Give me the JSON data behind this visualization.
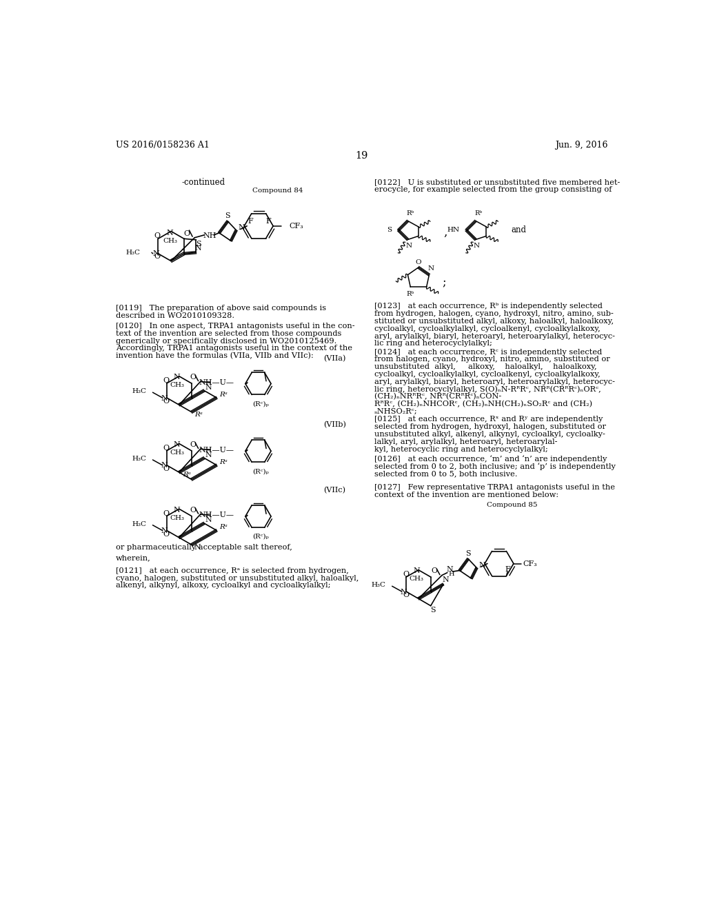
{
  "bg_color": "#ffffff",
  "header_left": "US 2016/0158236 A1",
  "header_right": "Jun. 9, 2016",
  "page_number": "19"
}
